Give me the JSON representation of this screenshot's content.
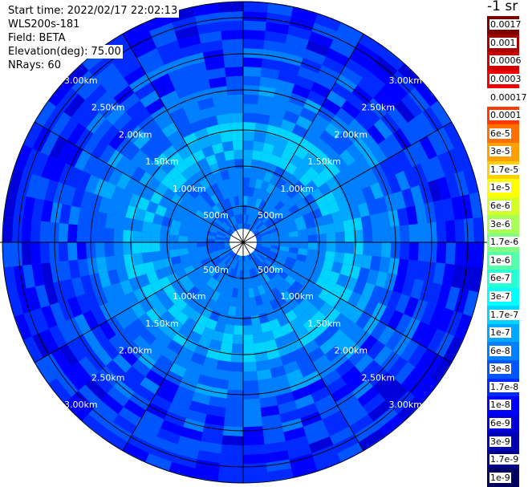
{
  "header": {
    "start_time": "Start time: 2022/02/17 22:02:13",
    "instrument": "WLS200s-181",
    "field": "Field: BETA",
    "elevation": "Elevation(deg): 75.00",
    "nrays": "NRays: 60"
  },
  "range_rings": {
    "labels": [
      "500m",
      "1.00km",
      "1.50km",
      "2.00km",
      "2.50km",
      "3.00km"
    ]
  },
  "colorbar": {
    "title": "-1 sr",
    "levels": [
      {
        "label": "0.0017",
        "color": "#7a0000"
      },
      {
        "label": "0.001",
        "color": "#a80000"
      },
      {
        "label": "0.0006",
        "color": "#d00000"
      },
      {
        "label": "0.0003",
        "color": "#f00000"
      },
      {
        "label": "0.00017",
        "color": "#ffffff"
      },
      {
        "label": "0.0001",
        "color": "#ff3a00"
      },
      {
        "label": "6e-5",
        "color": "#ff7000"
      },
      {
        "label": "3e-5",
        "color": "#ffa000"
      },
      {
        "label": "1.7e-5",
        "color": "#ffd000"
      },
      {
        "label": "1e-5",
        "color": "#ffff00"
      },
      {
        "label": "6e-6",
        "color": "#d4ff28"
      },
      {
        "label": "3e-6",
        "color": "#a8ff55"
      },
      {
        "label": "1.7e-6",
        "color": "#80ff80"
      },
      {
        "label": "1e-6",
        "color": "#55ffaa"
      },
      {
        "label": "6e-7",
        "color": "#28ffd4"
      },
      {
        "label": "3e-7",
        "color": "#00ffff"
      },
      {
        "label": "1.7e-7",
        "color": "#00d4ff"
      },
      {
        "label": "1e-7",
        "color": "#00a8ff"
      },
      {
        "label": "6e-8",
        "color": "#0080ff"
      },
      {
        "label": "3e-8",
        "color": "#0055ff"
      },
      {
        "label": "1.7e-8",
        "color": "#002aff"
      },
      {
        "label": "1e-8",
        "color": "#0000ff"
      },
      {
        "label": "6e-9",
        "color": "#0000d8"
      },
      {
        "label": "3e-9",
        "color": "#0000b0"
      },
      {
        "label": "1.7e-9",
        "color": "#000088"
      },
      {
        "label": "1e-9",
        "color": "#000060"
      }
    ]
  }
}
